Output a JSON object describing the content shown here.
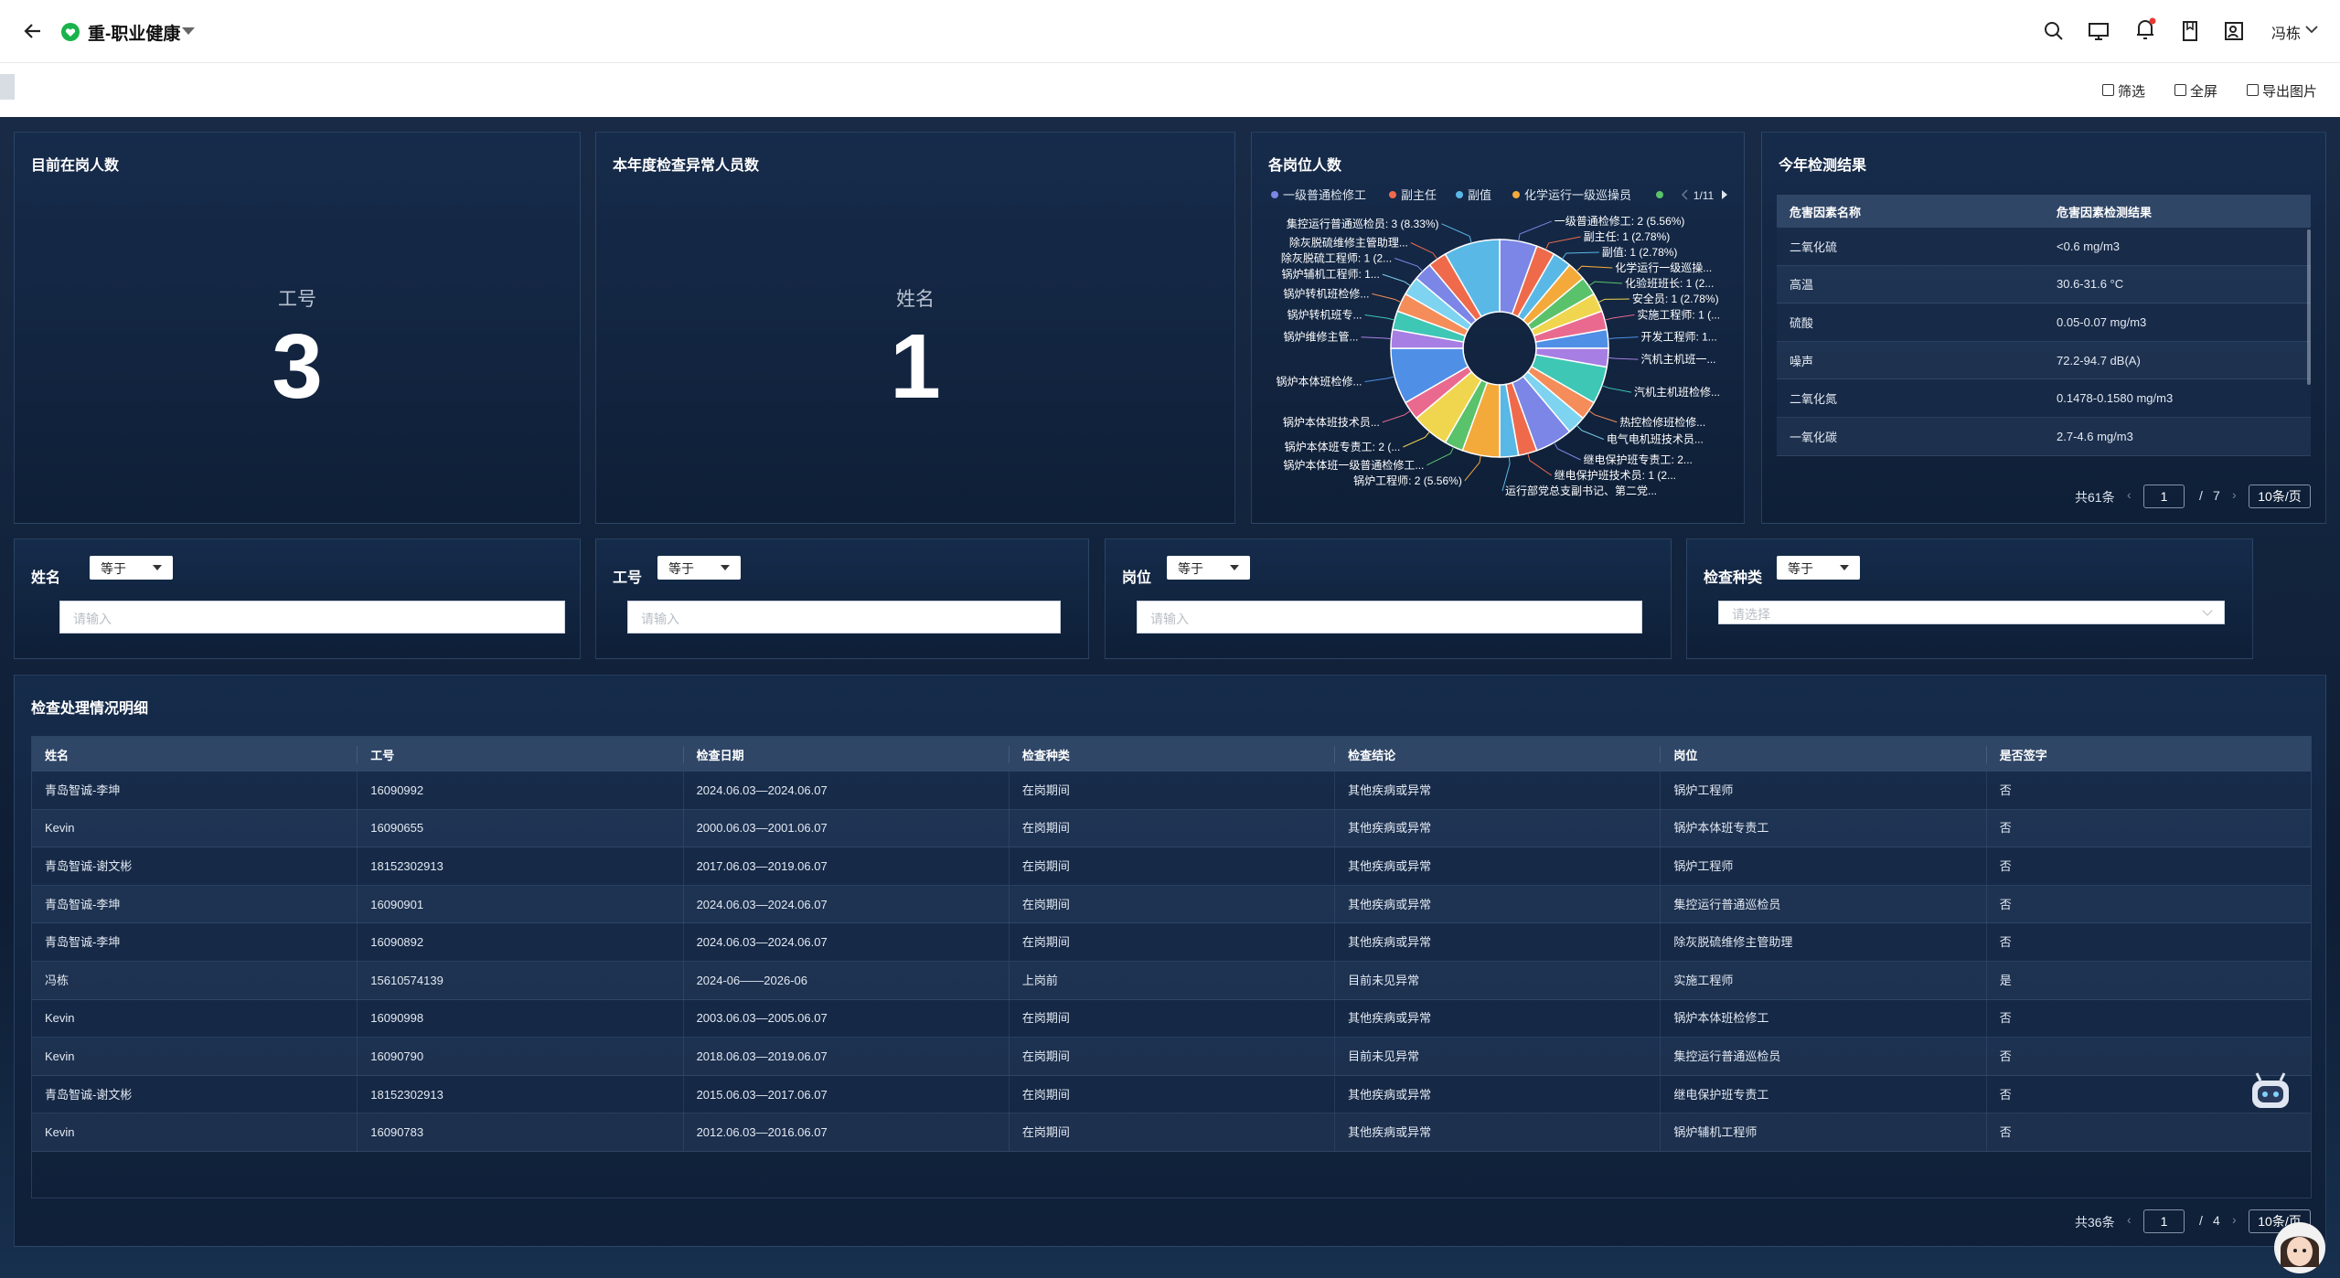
{
  "header": {
    "title": "重-职业健康",
    "user": "冯栋"
  },
  "toolbar": [
    "筛选",
    "全屏",
    "导出图片"
  ],
  "kpis": [
    {
      "title": "目前在岗人数",
      "label": "工号",
      "value": 3
    },
    {
      "title": "本年度检查异常人员数",
      "label": "姓名",
      "value": 1
    }
  ],
  "chart_data": {
    "type": "pie",
    "title": "各岗位人数",
    "legend": [
      "一级普通检修工",
      "副主任",
      "副值",
      "化学运行一级巡操员"
    ],
    "legend_page": "1/11",
    "labels": [
      "一级普通检修工: 2 (5.56%)",
      "副主任: 1 (2.78%)",
      "副值: 1 (2.78%)",
      "化学运行一级巡操...",
      "化验班班长: 1 (2...",
      "安全员: 1 (2.78%)",
      "实施工程师: 1 (...",
      "开发工程师: 1...",
      "汽机主机班一...",
      "汽机主机班检修...",
      "热控检修班检修...",
      "电气电机班技术员...",
      "继电保护班专责工: 2...",
      "继电保护班技术员: 1 (2...",
      "运行部党总支副书记、第二党...",
      "锅炉工程师: 2 (5.56%)",
      "锅炉本体班一级普通检修工...",
      "锅炉本体班专责工: 2 (...",
      "锅炉本体班技术员...",
      "锅炉本体班检修...",
      "锅炉维修主管...",
      "锅炉转机班专...",
      "锅炉转机班检修...",
      "锅炉辅机工程师: 1...",
      "除灰脱硫工程师: 1 (2...",
      "除灰脱硫维修主管助理...",
      "集控运行普通巡检员: 3 (8.33%)"
    ],
    "values": [
      2,
      1,
      1,
      1,
      1,
      1,
      1,
      1,
      1,
      2,
      1,
      1,
      2,
      1,
      1,
      2,
      1,
      2,
      1,
      3,
      1,
      1,
      1,
      1,
      1,
      1,
      3
    ],
    "colors": [
      "#7b86e6",
      "#ef6a4b",
      "#5ab8e6",
      "#f4a93b",
      "#5ac26a",
      "#f0d64f",
      "#ea6a8f",
      "#4f8fe6",
      "#a77ee3",
      "#3fc7b5",
      "#f58d5a",
      "#7dd3f0"
    ]
  },
  "results": {
    "title": "今年检测结果",
    "columns": [
      "危害因素名称",
      "危害因素检测结果"
    ],
    "rows": [
      [
        "二氧化硫",
        "<0.6 mg/m3"
      ],
      [
        "高温",
        "30.6-31.6 °C"
      ],
      [
        "硫酸",
        "0.05-0.07 mg/m3"
      ],
      [
        "噪声",
        "72.2-94.7 dB(A)"
      ],
      [
        "二氧化氮",
        "0.1478-0.1580 mg/m3"
      ],
      [
        "一氧化碳",
        "2.7-4.6 mg/m3"
      ]
    ],
    "pager": {
      "total": "共61条",
      "page": 1,
      "sep": "/",
      "pages": 7,
      "size": "10条/页"
    }
  },
  "filters": [
    {
      "label": "姓名",
      "op": "等于",
      "placeholder": "请输入"
    },
    {
      "label": "工号",
      "op": "等于",
      "placeholder": "请输入"
    },
    {
      "label": "岗位",
      "op": "等于",
      "placeholder": "请输入"
    },
    {
      "label": "检查种类",
      "op": "等于",
      "placeholder": "请选择"
    }
  ],
  "detail": {
    "title": "检查处理情况明细",
    "columns": [
      "姓名",
      "工号",
      "检查日期",
      "检查种类",
      "检查结论",
      "岗位",
      "是否签字"
    ],
    "rows": [
      [
        "青岛智诚-李坤",
        "16090992",
        "2024.06.03—2024.06.07",
        "在岗期间",
        "其他疾病或异常",
        "锅炉工程师",
        "否"
      ],
      [
        "Kevin",
        "16090655",
        "2000.06.03—2001.06.07",
        "在岗期间",
        "其他疾病或异常",
        "锅炉本体班专责工",
        "否"
      ],
      [
        "青岛智诚-谢文彬",
        "18152302913",
        "2017.06.03—2019.06.07",
        "在岗期间",
        "其他疾病或异常",
        "锅炉工程师",
        "否"
      ],
      [
        "青岛智诚-李坤",
        "16090901",
        "2024.06.03—2024.06.07",
        "在岗期间",
        "其他疾病或异常",
        "集控运行普通巡检员",
        "否"
      ],
      [
        "青岛智诚-李坤",
        "16090892",
        "2024.06.03—2024.06.07",
        "在岗期间",
        "其他疾病或异常",
        "除灰脱硫维修主管助理",
        "否"
      ],
      [
        "冯栋",
        "15610574139",
        "2024-06——2026-06",
        "上岗前",
        "目前未见异常",
        "实施工程师",
        "是"
      ],
      [
        "Kevin",
        "16090998",
        "2003.06.03—2005.06.07",
        "在岗期间",
        "其他疾病或异常",
        "锅炉本体班检修工",
        "否"
      ],
      [
        "Kevin",
        "16090790",
        "2018.06.03—2019.06.07",
        "在岗期间",
        "目前未见异常",
        "集控运行普通巡检员",
        "否"
      ],
      [
        "青岛智诚-谢文彬",
        "18152302913",
        "2015.06.03—2017.06.07",
        "在岗期间",
        "其他疾病或异常",
        "继电保护班专责工",
        "否"
      ],
      [
        "Kevin",
        "16090783",
        "2012.06.03—2016.06.07",
        "在岗期间",
        "其他疾病或异常",
        "锅炉辅机工程师",
        "否"
      ]
    ],
    "pager": {
      "total": "共36条",
      "page": 1,
      "sep": "/",
      "pages": 4,
      "size": "10条/页"
    }
  }
}
